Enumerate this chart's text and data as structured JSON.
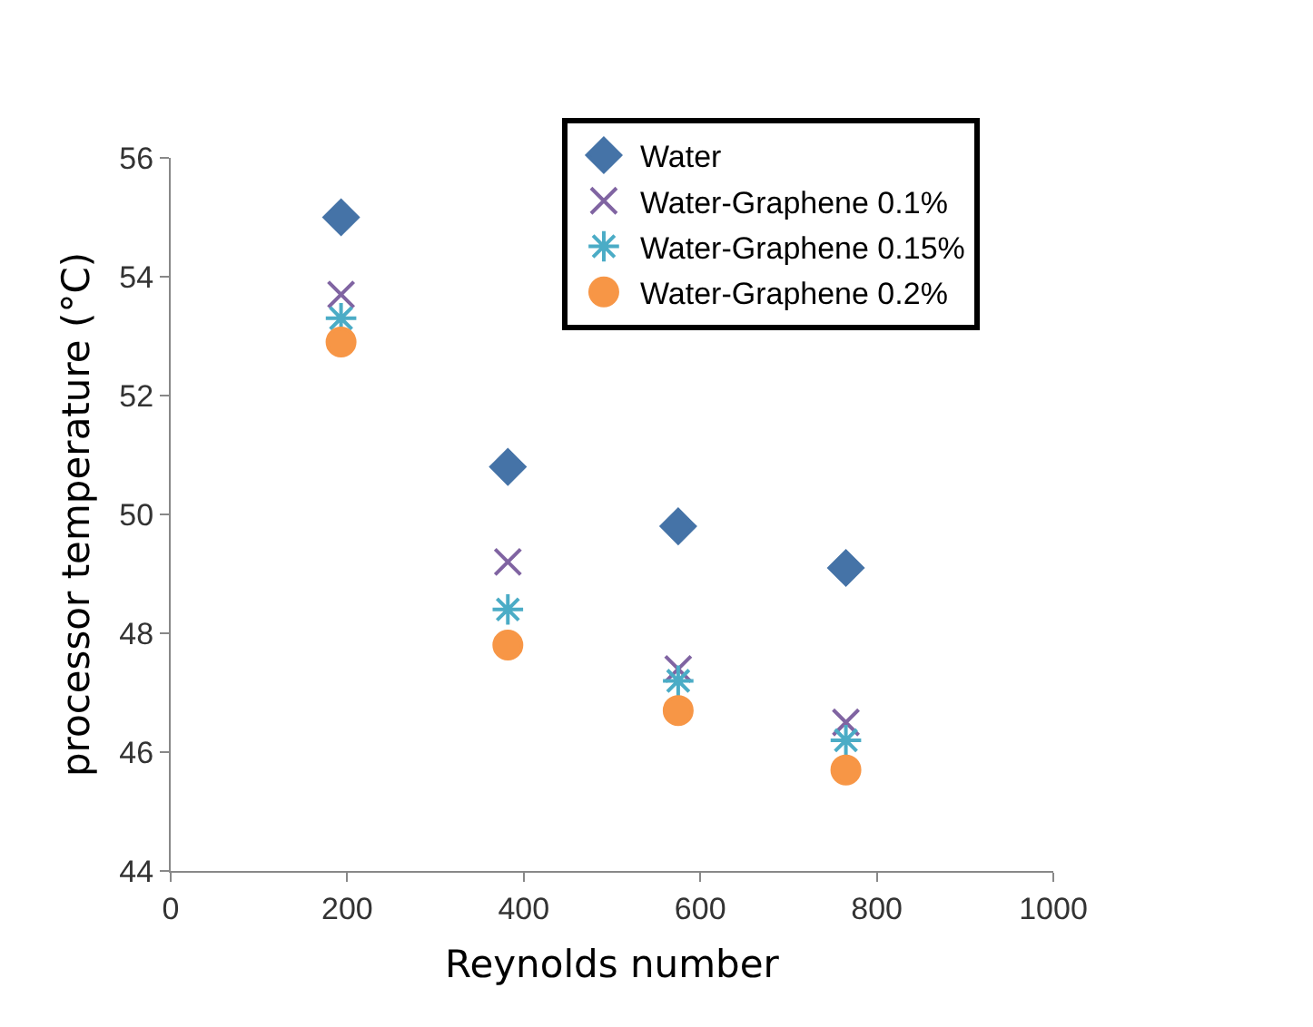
{
  "chart_data": {
    "type": "scatter",
    "xlabel": "Reynolds number",
    "ylabel": "processor temperature (°C)",
    "x": [
      193,
      382,
      575,
      765
    ],
    "series": [
      {
        "name": "Water",
        "color": "#4573a7",
        "marker": "diamond",
        "values": [
          55.0,
          50.8,
          49.8,
          49.1
        ]
      },
      {
        "name": "Water-Graphene 0.1%",
        "color": "#8064a2",
        "marker": "cross",
        "values": [
          53.7,
          49.2,
          47.4,
          46.5
        ]
      },
      {
        "name": "Water-Graphene 0.15%",
        "color": "#4bacc6",
        "marker": "cross",
        "values": [
          53.3,
          48.4,
          47.2,
          46.2
        ]
      },
      {
        "name": "Water-Graphene 0.2%",
        "color": "#f79646",
        "marker": "circle",
        "values": [
          52.9,
          47.8,
          46.7,
          45.7
        ]
      }
    ],
    "xlim": [
      0,
      1000
    ],
    "xticks": [
      0,
      200,
      400,
      600,
      800,
      1000
    ],
    "ylim": [
      44,
      56
    ],
    "yticks": [
      44,
      46,
      48,
      50,
      52,
      54,
      56
    ],
    "grid": false,
    "legend": "top"
  }
}
